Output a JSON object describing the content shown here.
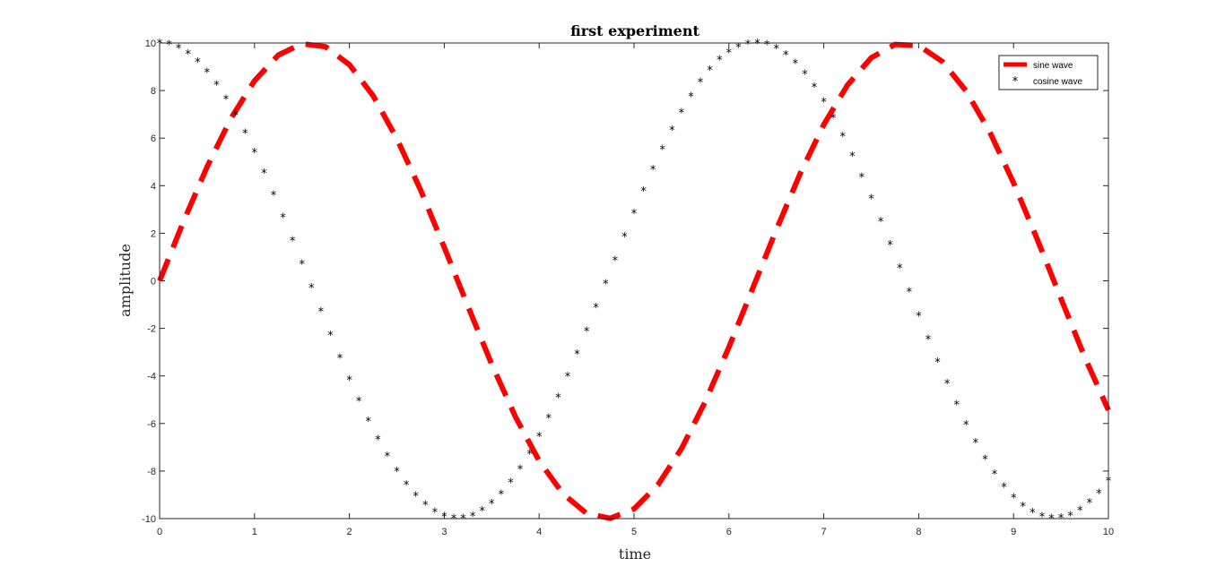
{
  "chart_data": {
    "type": "line",
    "title": "first experiment",
    "xlabel": "time",
    "ylabel": "amplitude",
    "xlim": [
      0,
      10
    ],
    "ylim": [
      -10,
      10
    ],
    "x_ticks": [
      0,
      1,
      2,
      3,
      4,
      5,
      6,
      7,
      8,
      9,
      10
    ],
    "x_tick_labels": [
      "0",
      "1",
      "2",
      "3",
      "4",
      "5",
      "6",
      "7",
      "8",
      "9",
      "10"
    ],
    "y_ticks": [
      -10,
      -8,
      -6,
      -4,
      -2,
      0,
      2,
      4,
      6,
      8,
      10
    ],
    "y_tick_labels": [
      "-10",
      "-8",
      "-6",
      "-4",
      "-2",
      "0",
      "2",
      "4",
      "6",
      "8",
      "10"
    ],
    "grid": false,
    "legend_position": "top-right",
    "series": [
      {
        "name": "sine wave",
        "style": "dashed-line",
        "color": "#ff0000",
        "x": [
          0,
          0.25,
          0.5,
          0.75,
          1,
          1.25,
          1.5,
          1.75,
          2,
          2.25,
          2.5,
          2.75,
          3,
          3.25,
          3.5,
          3.75,
          4,
          4.25,
          4.5,
          4.75,
          5,
          5.25,
          5.5,
          5.75,
          6,
          6.25,
          6.5,
          6.75,
          7,
          7.25,
          7.5,
          7.75,
          8,
          8.25,
          8.5,
          8.75,
          9,
          9.25,
          9.5,
          9.75,
          10
        ],
        "y": [
          0,
          2.47,
          4.79,
          6.82,
          8.41,
          9.49,
          9.97,
          9.84,
          9.09,
          7.78,
          5.98,
          3.82,
          1.41,
          -1.08,
          -3.51,
          -5.72,
          -7.57,
          -8.95,
          -9.78,
          -9.99,
          -9.59,
          -8.59,
          -7.06,
          -5.09,
          -2.79,
          -0.32,
          2.15,
          4.5,
          6.57,
          8.23,
          9.38,
          9.94,
          9.89,
          9.22,
          7.98,
          6.25,
          4.12,
          1.74,
          -0.75,
          -3.2,
          -5.44
        ]
      },
      {
        "name": "cosine wave",
        "style": "star-markers",
        "color": "#000000",
        "x": [
          0,
          0.1,
          0.2,
          0.3,
          0.4,
          0.5,
          0.6,
          0.7,
          0.8,
          0.9,
          1,
          1.1,
          1.2,
          1.3,
          1.4,
          1.5,
          1.6,
          1.7,
          1.8,
          1.9,
          2,
          2.1,
          2.2,
          2.3,
          2.4,
          2.5,
          2.6,
          2.7,
          2.8,
          2.9,
          3,
          3.1,
          3.2,
          3.3,
          3.4,
          3.5,
          3.6,
          3.7,
          3.8,
          3.9,
          4,
          4.1,
          4.2,
          4.3,
          4.4,
          4.5,
          4.6,
          4.7,
          4.8,
          4.9,
          5,
          5.1,
          5.2,
          5.3,
          5.4,
          5.5,
          5.6,
          5.7,
          5.8,
          5.9,
          6,
          6.1,
          6.2,
          6.3,
          6.4,
          6.5,
          6.6,
          6.7,
          6.8,
          6.9,
          7,
          7.1,
          7.2,
          7.3,
          7.4,
          7.5,
          7.6,
          7.7,
          7.8,
          7.9,
          8,
          8.1,
          8.2,
          8.3,
          8.4,
          8.5,
          8.6,
          8.7,
          8.8,
          8.9,
          9,
          9.1,
          9.2,
          9.3,
          9.4,
          9.5,
          9.6,
          9.7,
          9.8,
          9.9,
          10
        ],
        "y": [
          10,
          9.95,
          9.8,
          9.55,
          9.21,
          8.78,
          8.25,
          7.65,
          6.97,
          6.22,
          5.4,
          4.54,
          3.62,
          2.67,
          1.7,
          0.71,
          -0.29,
          -1.29,
          -2.27,
          -3.23,
          -4.16,
          -5.05,
          -5.89,
          -6.67,
          -7.37,
          -8.01,
          -8.57,
          -9.04,
          -9.42,
          -9.71,
          -9.9,
          -9.99,
          -9.98,
          -9.88,
          -9.67,
          -9.36,
          -8.97,
          -8.48,
          -7.91,
          -7.26,
          -6.54,
          -5.76,
          -4.9,
          -4.01,
          -3.07,
          -2.11,
          -1.12,
          -0.12,
          0.87,
          1.86,
          2.84,
          3.78,
          4.68,
          5.54,
          6.34,
          7.09,
          7.76,
          8.36,
          8.87,
          9.3,
          9.6,
          9.83,
          9.96,
          10,
          9.94,
          9.77,
          9.51,
          9.15,
          8.7,
          8.16,
          7.54,
          6.85,
          6.08,
          5.26,
          4.37,
          3.47,
          2.51,
          1.53,
          0.54,
          -0.46,
          -1.46,
          -2.44,
          -3.4,
          -4.32,
          -5.2,
          -6.04,
          -6.8,
          -7.5,
          -8.12,
          -8.66,
          -9.11,
          -9.47,
          -9.73,
          -9.9,
          -9.99,
          -9.97,
          -9.86,
          -9.65,
          -9.33,
          -8.93,
          -8.39
        ]
      }
    ]
  }
}
